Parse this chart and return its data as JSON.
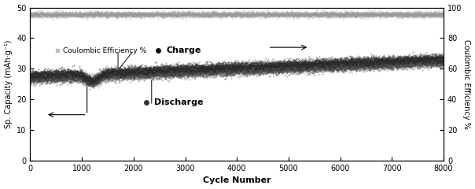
{
  "xlim": [
    0,
    8000
  ],
  "ylim_left": [
    0,
    50
  ],
  "ylim_right": [
    0,
    100
  ],
  "xlabel": "Cycle Number",
  "ylabel_left": "Sp. Capacity (mAh·g⁻¹)",
  "ylabel_right": "Coulombic Efficiency %",
  "xticks": [
    0,
    1000,
    2000,
    3000,
    4000,
    5000,
    6000,
    7000,
    8000
  ],
  "yticks_left": [
    0,
    10,
    20,
    30,
    40,
    50
  ],
  "yticks_right": [
    0,
    20,
    40,
    60,
    80,
    100
  ],
  "charge_color": "#2a2a2a",
  "discharge_color": "#4a4a4a",
  "ce_color": "#999999",
  "n_points": 8000,
  "charge_start": 28.0,
  "charge_end": 33.5,
  "discharge_start": 26.5,
  "discharge_end": 32.0,
  "ce_mean": 95.5,
  "ce_std": 0.9,
  "charge_noise": 0.7,
  "discharge_noise": 0.7,
  "figsize": [
    6.04,
    2.4
  ],
  "dpi": 100,
  "bg_color": "#f0f0f0"
}
